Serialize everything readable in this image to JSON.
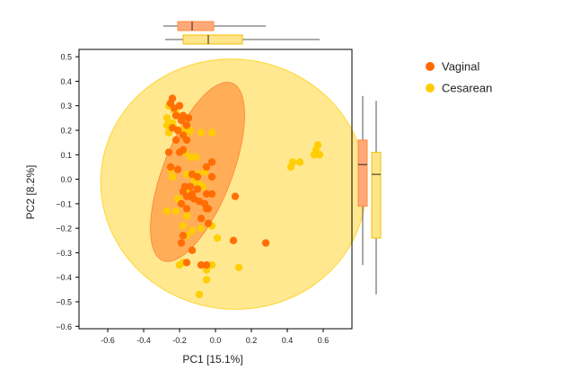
{
  "chart_data": {
    "type": "scatter",
    "xlabel": "PC1 [15.1%]",
    "ylabel": "PC2 [8.2%]",
    "xlim": [
      -0.76,
      0.76
    ],
    "ylim": [
      -0.61,
      0.53
    ],
    "xticks": [
      -0.6,
      -0.4,
      -0.2,
      0.0,
      0.2,
      0.4,
      0.6
    ],
    "xtick_labels": [
      "-0.6",
      "-0.4",
      "-0.2",
      "0.0",
      "0.2",
      "0.4",
      "0.6"
    ],
    "yticks": [
      0.5,
      0.4,
      0.3,
      0.2,
      0.1,
      0.0,
      -0.1,
      -0.2,
      -0.3,
      -0.4,
      -0.5,
      -0.6
    ],
    "ytick_labels": [
      "0.5",
      "0.4",
      "0.3",
      "0.2",
      "0.1",
      "0.0",
      "−0.1",
      "−0.2",
      "−0.3",
      "−0.4",
      "−0.5",
      "−0.6"
    ],
    "legend_position": "top-right",
    "series": [
      {
        "name": "Vaginal",
        "color": "#ff6a00",
        "ellipse_color": "#ff7d2a",
        "box_fill": "#ffa978",
        "box_stroke": "#ff8c40",
        "points": [
          [
            -0.24,
            0.33
          ],
          [
            -0.25,
            0.31
          ],
          [
            -0.23,
            0.29
          ],
          [
            -0.2,
            0.3
          ],
          [
            -0.18,
            0.26
          ],
          [
            -0.22,
            0.26
          ],
          [
            -0.19,
            0.24
          ],
          [
            -0.15,
            0.25
          ],
          [
            -0.16,
            0.22
          ],
          [
            -0.21,
            0.2
          ],
          [
            -0.24,
            0.21
          ],
          [
            -0.18,
            0.18
          ],
          [
            -0.16,
            0.16
          ],
          [
            -0.22,
            0.16
          ],
          [
            -0.26,
            0.11
          ],
          [
            -0.18,
            0.12
          ],
          [
            -0.2,
            0.11
          ],
          [
            -0.25,
            0.05
          ],
          [
            -0.21,
            0.04
          ],
          [
            -0.02,
            0.07
          ],
          [
            -0.05,
            0.05
          ],
          [
            -0.02,
            0.01
          ],
          [
            -0.1,
            0.01
          ],
          [
            -0.13,
            0.02
          ],
          [
            -0.17,
            -0.03
          ],
          [
            -0.14,
            -0.03
          ],
          [
            -0.1,
            -0.04
          ],
          [
            -0.13,
            -0.06
          ],
          [
            -0.12,
            -0.08
          ],
          [
            -0.05,
            -0.06
          ],
          [
            -0.02,
            -0.06
          ],
          [
            -0.14,
            -0.07
          ],
          [
            -0.16,
            -0.07
          ],
          [
            -0.18,
            -0.05
          ],
          [
            -0.09,
            -0.09
          ],
          [
            -0.06,
            -0.1
          ],
          [
            -0.19,
            -0.1
          ],
          [
            -0.16,
            -0.12
          ],
          [
            -0.05,
            -0.12
          ],
          [
            -0.04,
            -0.12
          ],
          [
            -0.08,
            -0.16
          ],
          [
            -0.04,
            -0.18
          ],
          [
            0.11,
            -0.07
          ],
          [
            -0.18,
            -0.23
          ],
          [
            -0.19,
            -0.26
          ],
          [
            -0.13,
            -0.29
          ],
          [
            0.1,
            -0.25
          ],
          [
            0.28,
            -0.26
          ],
          [
            -0.16,
            -0.34
          ],
          [
            -0.08,
            -0.35
          ],
          [
            -0.05,
            -0.35
          ]
        ]
      },
      {
        "name": "Cesarean",
        "color": "#ffcc00",
        "ellipse_color": "#ffd633",
        "box_fill": "#ffe48a",
        "box_stroke": "#f2c200",
        "points": [
          [
            -0.26,
            0.3
          ],
          [
            -0.23,
            0.28
          ],
          [
            -0.22,
            0.27
          ],
          [
            -0.27,
            0.25
          ],
          [
            -0.24,
            0.23
          ],
          [
            -0.27,
            0.22
          ],
          [
            -0.23,
            0.21
          ],
          [
            -0.26,
            0.19
          ],
          [
            -0.19,
            0.2
          ],
          [
            -0.16,
            0.19
          ],
          [
            -0.14,
            0.2
          ],
          [
            -0.08,
            0.19
          ],
          [
            -0.02,
            0.19
          ],
          [
            -0.17,
            0.11
          ],
          [
            -0.14,
            0.09
          ],
          [
            -0.11,
            0.09
          ],
          [
            -0.25,
            0.04
          ],
          [
            -0.24,
            0.01
          ],
          [
            -0.16,
            0.02
          ],
          [
            -0.1,
            0.02
          ],
          [
            -0.06,
            0.03
          ],
          [
            -0.12,
            -0.01
          ],
          [
            -0.09,
            -0.02
          ],
          [
            -0.07,
            -0.03
          ],
          [
            -0.15,
            -0.04
          ],
          [
            -0.21,
            -0.08
          ],
          [
            -0.22,
            -0.13
          ],
          [
            -0.27,
            -0.13
          ],
          [
            -0.16,
            -0.15
          ],
          [
            -0.18,
            -0.19
          ],
          [
            -0.13,
            -0.21
          ],
          [
            -0.08,
            -0.2
          ],
          [
            -0.02,
            -0.19
          ],
          [
            0.01,
            -0.24
          ],
          [
            -0.16,
            -0.23
          ],
          [
            -0.18,
            -0.34
          ],
          [
            -0.2,
            -0.35
          ],
          [
            -0.05,
            -0.37
          ],
          [
            -0.02,
            -0.35
          ],
          [
            0.13,
            -0.36
          ],
          [
            -0.05,
            -0.41
          ],
          [
            -0.09,
            -0.47
          ],
          [
            0.42,
            0.05
          ],
          [
            0.47,
            0.07
          ],
          [
            0.55,
            0.1
          ],
          [
            0.56,
            0.12
          ],
          [
            0.58,
            0.1
          ],
          [
            0.57,
            0.14
          ],
          [
            0.43,
            0.07
          ]
        ]
      }
    ],
    "ellipses": [
      {
        "series": "Vaginal",
        "center": [
          -0.1,
          0.03
        ],
        "semi_axis_major": 0.41,
        "semi_axis_minor": 0.175,
        "rotation_deg": -118
      },
      {
        "series": "Cesarean",
        "center": [
          0.1,
          -0.02
        ],
        "semi_axis_x": 0.74,
        "semi_axis_y": 0.51,
        "rotation_deg": 8
      }
    ],
    "pc1_boxplots": [
      {
        "series": "Vaginal",
        "whisker_low": -0.29,
        "q1": -0.21,
        "median": -0.13,
        "q3": -0.01,
        "whisker_high": 0.28
      },
      {
        "series": "Cesarean",
        "whisker_low": -0.28,
        "q1": -0.18,
        "median": -0.04,
        "q3": 0.15,
        "whisker_high": 0.58
      }
    ],
    "pc2_boxplots": [
      {
        "series": "Vaginal",
        "whisker_low": -0.35,
        "q1": -0.11,
        "median": 0.06,
        "q3": 0.16,
        "whisker_high": 0.34
      },
      {
        "series": "Cesarean",
        "whisker_low": -0.47,
        "q1": -0.24,
        "median": 0.02,
        "q3": 0.11,
        "whisker_high": 0.32
      }
    ]
  }
}
